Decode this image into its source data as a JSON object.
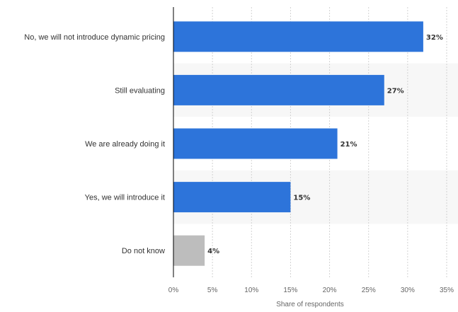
{
  "chart_data": {
    "type": "bar",
    "orientation": "horizontal",
    "title": "",
    "xlabel": "Share of respondents",
    "ylabel": "",
    "categories": [
      "No, we will not introduce dynamic pricing",
      "Still evaluating",
      "We are already doing it",
      "Yes, we will introduce it",
      "Do not know"
    ],
    "values": [
      32,
      27,
      21,
      15,
      4
    ],
    "value_labels": [
      "32%",
      "27%",
      "21%",
      "15%",
      "4%"
    ],
    "xlim": [
      0,
      35
    ],
    "ticks": [
      0,
      5,
      10,
      15,
      20,
      25,
      30,
      35
    ],
    "tick_labels": [
      "0%",
      "5%",
      "10%",
      "15%",
      "20%",
      "25%",
      "30%",
      "35%"
    ],
    "grid": true,
    "legend": "none",
    "colors": {
      "bar": "#2d74da",
      "bar_highlight": "#bdbdbd",
      "band": "#f7f7f7",
      "grid": "#d2d2d2",
      "axis": "#000000"
    },
    "bar_colors": [
      "#2d74da",
      "#2d74da",
      "#2d74da",
      "#2d74da",
      "#bdbdbd"
    ]
  }
}
